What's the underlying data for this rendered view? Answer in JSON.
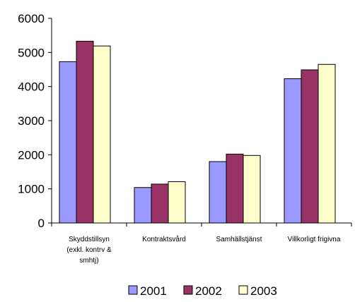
{
  "chart_data": {
    "type": "bar",
    "categories": [
      [
        "Skyddstillsyn",
        "(exkl. kontrv &",
        "smhtj)"
      ],
      [
        "Kontraktsvård"
      ],
      [
        "Samhällstjänst"
      ],
      [
        "Villkorligt frigivna"
      ]
    ],
    "series": [
      {
        "name": "2001",
        "values": [
          4730,
          1040,
          1800,
          4230
        ],
        "color": "#9999ff"
      },
      {
        "name": "2002",
        "values": [
          5330,
          1140,
          2020,
          4490
        ],
        "color": "#993366"
      },
      {
        "name": "2003",
        "values": [
          5190,
          1210,
          1980,
          4650
        ],
        "color": "#ffffcc"
      }
    ],
    "yticks": [
      0,
      1000,
      2000,
      3000,
      4000,
      5000,
      6000
    ],
    "ylim": [
      0,
      6000
    ],
    "legend_position": "bottom",
    "grid": false
  }
}
